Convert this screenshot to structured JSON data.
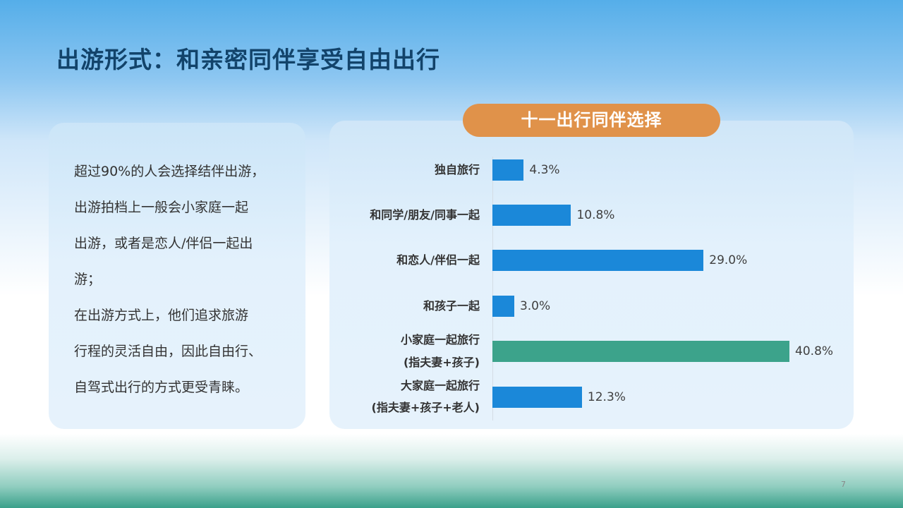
{
  "slide": {
    "title": "出游形式：和亲密同伴享受自由出行",
    "page_number": "7"
  },
  "left_panel": {
    "lines": [
      "超过90%的人会选择结伴出游，",
      "出游拍档上一般会小家庭一起",
      "出游，或者是恋人/伴侣一起出",
      "游；",
      "在出游方式上，他们追求旅游",
      "行程的灵活自由，因此自由行、",
      "自驾式出行的方式更受青睐。"
    ]
  },
  "colors": {
    "title": "#12436a",
    "badge": "#e0924a",
    "bar_default": "#1b88d9",
    "bar_highlight": "#3ca38b"
  },
  "chart_data": {
    "type": "bar",
    "orientation": "horizontal",
    "title": "十一出行同伴选择",
    "categories": [
      "独自旅行",
      "和同学/朋友/同事一起",
      "和恋人/伴侣一起",
      "和孩子一起",
      "小家庭一起旅行\n(指夫妻+孩子)",
      "大家庭一起旅行\n(指夫妻+孩子+老人)"
    ],
    "category_lines": [
      [
        "独自旅行"
      ],
      [
        "和同学/朋友/同事一起"
      ],
      [
        "和恋人/伴侣一起"
      ],
      [
        "和孩子一起"
      ],
      [
        "小家庭一起旅行",
        "(指夫妻+孩子)"
      ],
      [
        "大家庭一起旅行",
        "(指夫妻+孩子+老人)"
      ]
    ],
    "values": [
      4.3,
      10.8,
      29.0,
      3.0,
      40.8,
      12.3
    ],
    "value_labels": [
      "4.3%",
      "10.8%",
      "29.0%",
      "3.0%",
      "40.8%",
      "12.3%"
    ],
    "highlight_index": 4,
    "xlabel": "",
    "ylabel": "",
    "unit": "%",
    "grid": false,
    "legend": "none"
  }
}
